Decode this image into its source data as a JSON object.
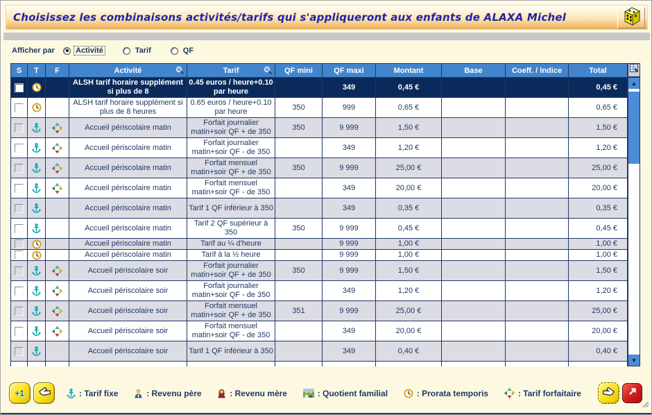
{
  "colors": {
    "header_bg": "#4285CC",
    "header_text": "#FFFFFF",
    "selected_bg": "#0B2A5C",
    "row_alt": "#DCDCE4",
    "grid": "#1F3864",
    "text": "#1F3864",
    "window_bg": "#FDF9E1",
    "title_text": "#2323A6",
    "sb_blue": "#4C8BD8"
  },
  "titlebar": {
    "title": "Choisissez les combinaisons activités/tarifs qui s'appliqueront aux enfants de ALAXA Michel",
    "icon": "dice-icon"
  },
  "filter": {
    "label": "Afficher par",
    "options": [
      {
        "label": "Activité",
        "selected": true
      },
      {
        "label": "Tarif",
        "selected": false
      },
      {
        "label": "QF",
        "selected": false
      }
    ]
  },
  "table": {
    "columns": [
      "S",
      "T",
      "F",
      "Activité",
      "Tarif",
      "QF mini",
      "QF maxi",
      "Montant",
      "Base",
      "Coeff. / Indice",
      "Total"
    ],
    "rows": [
      {
        "selected": true,
        "shade": "white",
        "small": false,
        "checked": false,
        "t": "clock",
        "f": "",
        "activite": "ALSH tarif horaire supplément si plus de 8",
        "tarif": "0.45 euros / heure+0.10 par heure",
        "qf_mini": "",
        "qf_maxi": "349",
        "montant": "0,45 €",
        "base": "",
        "coeff": "",
        "total": "0,45 €"
      },
      {
        "selected": false,
        "shade": "white",
        "small": false,
        "checked": false,
        "t": "clock",
        "f": "",
        "activite": "ALSH tarif horaire supplément si plus de 8 heures",
        "tarif": "0.65 euros / heure+0.10 par heure",
        "qf_mini": "350",
        "qf_maxi": "999",
        "montant": "0,65 €",
        "base": "",
        "coeff": "",
        "total": "0,65 €"
      },
      {
        "selected": false,
        "shade": "gray",
        "small": false,
        "checked": false,
        "t": "anchor",
        "f": "arrows",
        "activite": "Accueil périscolaire matin",
        "tarif": "Forfait journalier matin+soir QF + de 350",
        "qf_mini": "350",
        "qf_maxi": "9 999",
        "montant": "1,50 €",
        "base": "",
        "coeff": "",
        "total": "1,50 €"
      },
      {
        "selected": false,
        "shade": "white",
        "small": false,
        "checked": false,
        "t": "anchor",
        "f": "arrows",
        "activite": "Accueil périscolaire matin",
        "tarif": "Forfait journalier matin+soir QF - de 350",
        "qf_mini": "",
        "qf_maxi": "349",
        "montant": "1,20 €",
        "base": "",
        "coeff": "",
        "total": "1,20 €"
      },
      {
        "selected": false,
        "shade": "gray",
        "small": false,
        "checked": false,
        "t": "anchor",
        "f": "arrows",
        "activite": "Accueil périscolaire matin",
        "tarif": "Forfait mensuel matin+soir QF + de 350",
        "qf_mini": "350",
        "qf_maxi": "9 999",
        "montant": "25,00 €",
        "base": "",
        "coeff": "",
        "total": "25,00 €"
      },
      {
        "selected": false,
        "shade": "white",
        "small": false,
        "checked": false,
        "t": "anchor",
        "f": "arrows",
        "activite": "Accueil périscolaire matin",
        "tarif": "Forfait mensuel matin+soir QF - de 350",
        "qf_mini": "",
        "qf_maxi": "349",
        "montant": "20,00 €",
        "base": "",
        "coeff": "",
        "total": "20,00 €"
      },
      {
        "selected": false,
        "shade": "gray",
        "small": false,
        "checked": false,
        "t": "anchor",
        "f": "",
        "activite": "Accueil périscolaire matin",
        "tarif": "Tarif 1 QF inférieur à 350",
        "qf_mini": "",
        "qf_maxi": "349",
        "montant": "0,35 €",
        "base": "",
        "coeff": "",
        "total": "0,35 €"
      },
      {
        "selected": false,
        "shade": "white",
        "small": false,
        "checked": false,
        "t": "anchor",
        "f": "",
        "activite": "Accueil périscolaire matin",
        "tarif": "Tarif 2 QF supérieur à 350",
        "qf_mini": "350",
        "qf_maxi": "9 999",
        "montant": "0,45 €",
        "base": "",
        "coeff": "",
        "total": "0,45 €"
      },
      {
        "selected": false,
        "shade": "gray",
        "small": true,
        "checked": false,
        "t": "clock",
        "f": "",
        "activite": "Accueil périscolaire matin",
        "tarif": "Tarif au ¼ d'heure",
        "qf_mini": "",
        "qf_maxi": "9 999",
        "montant": "1,00 €",
        "base": "",
        "coeff": "",
        "total": "1,00 €"
      },
      {
        "selected": false,
        "shade": "white",
        "small": true,
        "checked": false,
        "t": "clock",
        "f": "",
        "activite": "Accueil périscolaire matin",
        "tarif": "Tarif à la ½ heure",
        "qf_mini": "",
        "qf_maxi": "9 999",
        "montant": "1,00 €",
        "base": "",
        "coeff": "",
        "total": "1,00 €"
      },
      {
        "selected": false,
        "shade": "gray",
        "small": false,
        "checked": false,
        "t": "anchor",
        "f": "arrows",
        "activite": "Accueil périscolaire soir",
        "tarif": "Forfait journalier matin+soir QF + de 350",
        "qf_mini": "350",
        "qf_maxi": "9 999",
        "montant": "1,50 €",
        "base": "",
        "coeff": "",
        "total": "1,50 €"
      },
      {
        "selected": false,
        "shade": "white",
        "small": false,
        "checked": false,
        "t": "anchor",
        "f": "arrows",
        "activite": "Accueil périscolaire soir",
        "tarif": "Forfait journalier matin+soir QF - de 350",
        "qf_mini": "",
        "qf_maxi": "349",
        "montant": "1,20 €",
        "base": "",
        "coeff": "",
        "total": "1,20 €"
      },
      {
        "selected": false,
        "shade": "gray",
        "small": false,
        "checked": false,
        "t": "anchor",
        "f": "arrows",
        "activite": "Accueil périscolaire soir",
        "tarif": "Forfait mensuel matin+soir QF + de 350",
        "qf_mini": "351",
        "qf_maxi": "9 999",
        "montant": "25,00 €",
        "base": "",
        "coeff": "",
        "total": "25,00 €"
      },
      {
        "selected": false,
        "shade": "white",
        "small": false,
        "checked": false,
        "t": "anchor",
        "f": "arrows",
        "activite": "Accueil périscolaire soir",
        "tarif": "Forfait mensuel matin+soir QF - de 350",
        "qf_mini": "",
        "qf_maxi": "349",
        "montant": "20,00 €",
        "base": "",
        "coeff": "",
        "total": "20,00 €"
      },
      {
        "selected": false,
        "shade": "gray",
        "small": false,
        "checked": false,
        "t": "anchor",
        "f": "",
        "activite": "Accueil périscolaire soir",
        "tarif": "Tarif 1 QF inférieur à 350",
        "qf_mini": "",
        "qf_maxi": "349",
        "montant": "0,40 €",
        "base": "",
        "coeff": "",
        "total": "0,40 €"
      }
    ]
  },
  "legend": {
    "items": [
      {
        "icon": "anchor",
        "label": ": Tarif fixe"
      },
      {
        "icon": "man",
        "label": ": Revenu père"
      },
      {
        "icon": "woman",
        "label": ": Revenu mère"
      },
      {
        "icon": "family",
        "label": ": Quotient familial"
      },
      {
        "icon": "clock",
        "label": ": Prorata temporis"
      },
      {
        "icon": "arrows",
        "label": ": Tarif forfaitaire"
      }
    ]
  },
  "footer_buttons": {
    "add_one": "+1",
    "glove": "glove-icon",
    "hand": "pointing-hand-icon",
    "exit": "exit-arrow-icon"
  }
}
